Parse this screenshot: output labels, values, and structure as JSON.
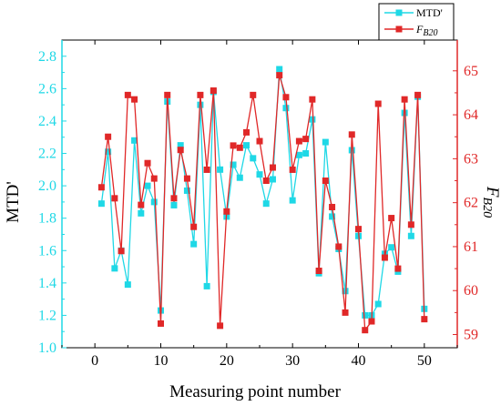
{
  "chart_data": {
    "type": "line",
    "title": "",
    "xlabel": "Measuring point number",
    "ylabel_left": "MTD'",
    "ylabel_right": "F_{B20}",
    "xlim": [
      -5,
      55
    ],
    "xticks": [
      0,
      10,
      20,
      30,
      40,
      50
    ],
    "ylim_left": [
      1.0,
      2.9
    ],
    "yticks_left": [
      1.0,
      1.2,
      1.4,
      1.6,
      1.8,
      2.0,
      2.2,
      2.4,
      2.6,
      2.8
    ],
    "ylim_right": [
      58.7,
      65.7
    ],
    "yticks_right": [
      59,
      60,
      61,
      62,
      63,
      64,
      65
    ],
    "legend_position": "top-right",
    "colors": {
      "left": "#1fd8e6",
      "right": "#e02828"
    },
    "series": [
      {
        "name": "MTD'",
        "axis": "left",
        "x": [
          1,
          2,
          3,
          4,
          5,
          6,
          7,
          8,
          9,
          10,
          11,
          12,
          13,
          14,
          15,
          16,
          17,
          18,
          19,
          20,
          21,
          22,
          23,
          24,
          25,
          26,
          27,
          28,
          29,
          30,
          31,
          32,
          33,
          34,
          35,
          36,
          37,
          38,
          39,
          40,
          41,
          42,
          43,
          44,
          45,
          46,
          47,
          48,
          49,
          50
        ],
        "values": [
          1.89,
          2.21,
          1.49,
          1.6,
          1.39,
          2.28,
          1.83,
          2.0,
          1.9,
          1.23,
          2.52,
          1.88,
          2.25,
          1.97,
          1.64,
          2.5,
          1.38,
          2.58,
          2.1,
          1.81,
          2.13,
          2.05,
          2.25,
          2.17,
          2.07,
          1.89,
          2.04,
          2.72,
          2.48,
          1.91,
          2.19,
          2.2,
          2.41,
          1.46,
          2.27,
          1.81,
          1.61,
          1.35,
          2.22,
          1.69,
          1.2,
          1.2,
          1.27,
          1.58,
          1.62,
          1.47,
          2.45,
          1.69,
          2.55,
          1.24
        ]
      },
      {
        "name": "F_{B20}",
        "axis": "right",
        "x": [
          1,
          2,
          3,
          4,
          5,
          6,
          7,
          8,
          9,
          10,
          11,
          12,
          13,
          14,
          15,
          16,
          17,
          18,
          19,
          20,
          21,
          22,
          23,
          24,
          25,
          26,
          27,
          28,
          29,
          30,
          31,
          32,
          33,
          34,
          35,
          36,
          37,
          38,
          39,
          40,
          41,
          42,
          43,
          44,
          45,
          46,
          47,
          48,
          49,
          50
        ],
        "values": [
          62.35,
          63.5,
          62.1,
          60.9,
          64.45,
          64.35,
          61.95,
          62.9,
          62.55,
          59.25,
          64.45,
          62.1,
          63.2,
          62.55,
          61.45,
          64.45,
          62.75,
          64.55,
          59.2,
          61.8,
          63.3,
          63.25,
          63.6,
          64.45,
          63.4,
          62.5,
          62.8,
          64.9,
          64.4,
          62.75,
          63.4,
          63.45,
          64.35,
          60.45,
          62.5,
          61.9,
          61.0,
          59.5,
          63.55,
          61.4,
          59.1,
          59.3,
          64.25,
          60.75,
          61.65,
          60.5,
          64.35,
          61.5,
          64.45,
          59.35
        ]
      }
    ]
  }
}
